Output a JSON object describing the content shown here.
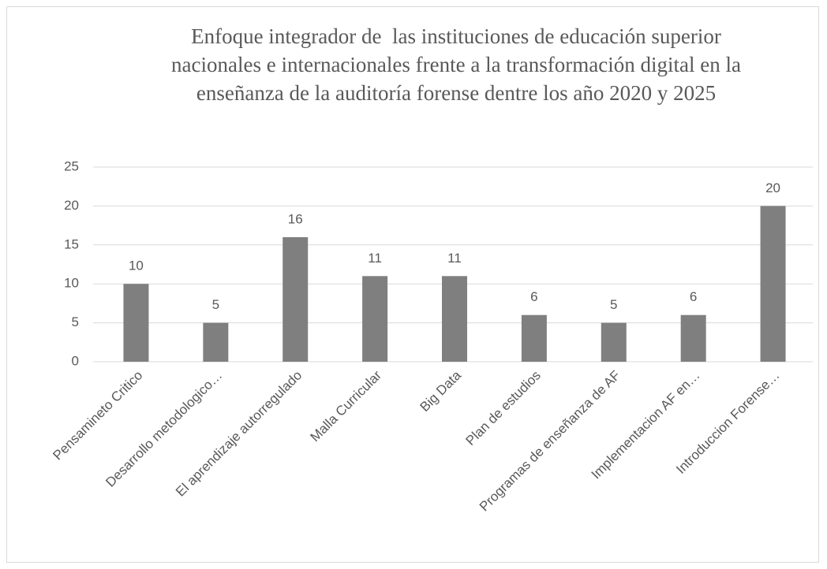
{
  "chart_data": {
    "type": "bar",
    "title": "Enfoque integrador de  las instituciones de educación superior nacionales e internacionales frente a la transformación digital en la enseñanza de la auditoría forense dentre los año 2020 y 2025",
    "categories": [
      "Pensamineto Critico",
      "Desarrollo metodologico…",
      "El aprendizaje autorregulado",
      "Malla Curricular",
      "Big Data",
      "Plan de estudios",
      "Programas de enseñanza de AF",
      "Implementacion AF en…",
      "Introduccion Forense…"
    ],
    "values": [
      10,
      5,
      16,
      11,
      11,
      6,
      5,
      6,
      20
    ],
    "color": "#7f7f7f",
    "ylim": [
      0,
      25
    ],
    "yticks": [
      0,
      5,
      10,
      15,
      20,
      25
    ],
    "grid": true
  }
}
